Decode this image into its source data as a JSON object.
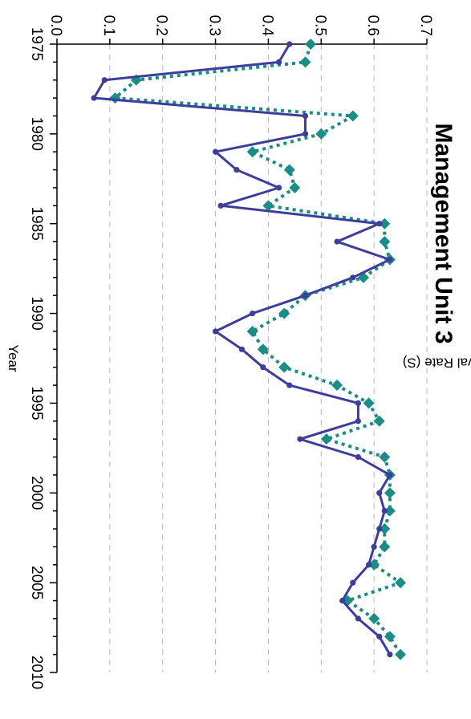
{
  "chart_data": {
    "type": "line",
    "title": "Management Unit 3",
    "xlabel": "Year",
    "ylabel": "Survival Rate (S)",
    "xlim": [
      1975,
      2010
    ],
    "ylim": [
      0.0,
      0.7
    ],
    "x_ticks": [
      1975,
      1980,
      1985,
      1990,
      1995,
      2000,
      2005,
      2010
    ],
    "y_ticks": [
      "0.0",
      "0.1",
      "0.2",
      "0.3",
      "0.4",
      "0.5",
      "0.6",
      "0.7"
    ],
    "y_tick_values": [
      0.0,
      0.1,
      0.2,
      0.3,
      0.4,
      0.5,
      0.6,
      0.7
    ],
    "grid": "horizontal dashed",
    "orientation": "rotated 90 degrees clockwise",
    "series": [
      {
        "color": "#3d3d9e",
        "line_style": "solid",
        "marker": "circle",
        "x": [
          1975,
          1976,
          1977,
          1978,
          1979,
          1980,
          1981,
          1982,
          1983,
          1984,
          1985,
          1986,
          1987,
          1988,
          1989,
          1990,
          1991,
          1992,
          1993,
          1994,
          1995,
          1996,
          1997,
          1998,
          1999,
          2000,
          2001,
          2002,
          2003,
          2004,
          2005,
          2006,
          2007,
          2008,
          2009
        ],
        "values": [
          0.44,
          0.42,
          0.09,
          0.07,
          0.47,
          0.47,
          0.3,
          0.34,
          0.42,
          0.31,
          0.61,
          0.53,
          0.63,
          0.56,
          0.47,
          0.37,
          0.3,
          0.35,
          0.39,
          0.44,
          0.57,
          0.57,
          0.46,
          0.57,
          0.63,
          0.61,
          0.62,
          0.61,
          0.6,
          0.59,
          0.56,
          0.54,
          0.57,
          0.61,
          0.63
        ]
      },
      {
        "color": "#1c8c87",
        "line_style": "dotted",
        "marker": "diamond",
        "x": [
          1975,
          1976,
          1977,
          1978,
          1979,
          1980,
          1981,
          1982,
          1983,
          1984,
          1985,
          1986,
          1987,
          1988,
          1989,
          1990,
          1991,
          1992,
          1993,
          1994,
          1995,
          1996,
          1997,
          1998,
          1999,
          2000,
          2001,
          2002,
          2003,
          2004,
          2005,
          2006,
          2007,
          2008,
          2009
        ],
        "values": [
          0.48,
          0.47,
          0.15,
          0.11,
          0.56,
          0.5,
          0.37,
          0.44,
          0.45,
          0.4,
          0.62,
          0.62,
          0.63,
          0.58,
          0.47,
          0.43,
          0.37,
          0.39,
          0.43,
          0.53,
          0.59,
          0.61,
          0.51,
          0.62,
          0.63,
          0.63,
          0.63,
          0.62,
          0.62,
          0.6,
          0.65,
          0.55,
          0.6,
          0.63,
          0.65
        ]
      }
    ]
  }
}
